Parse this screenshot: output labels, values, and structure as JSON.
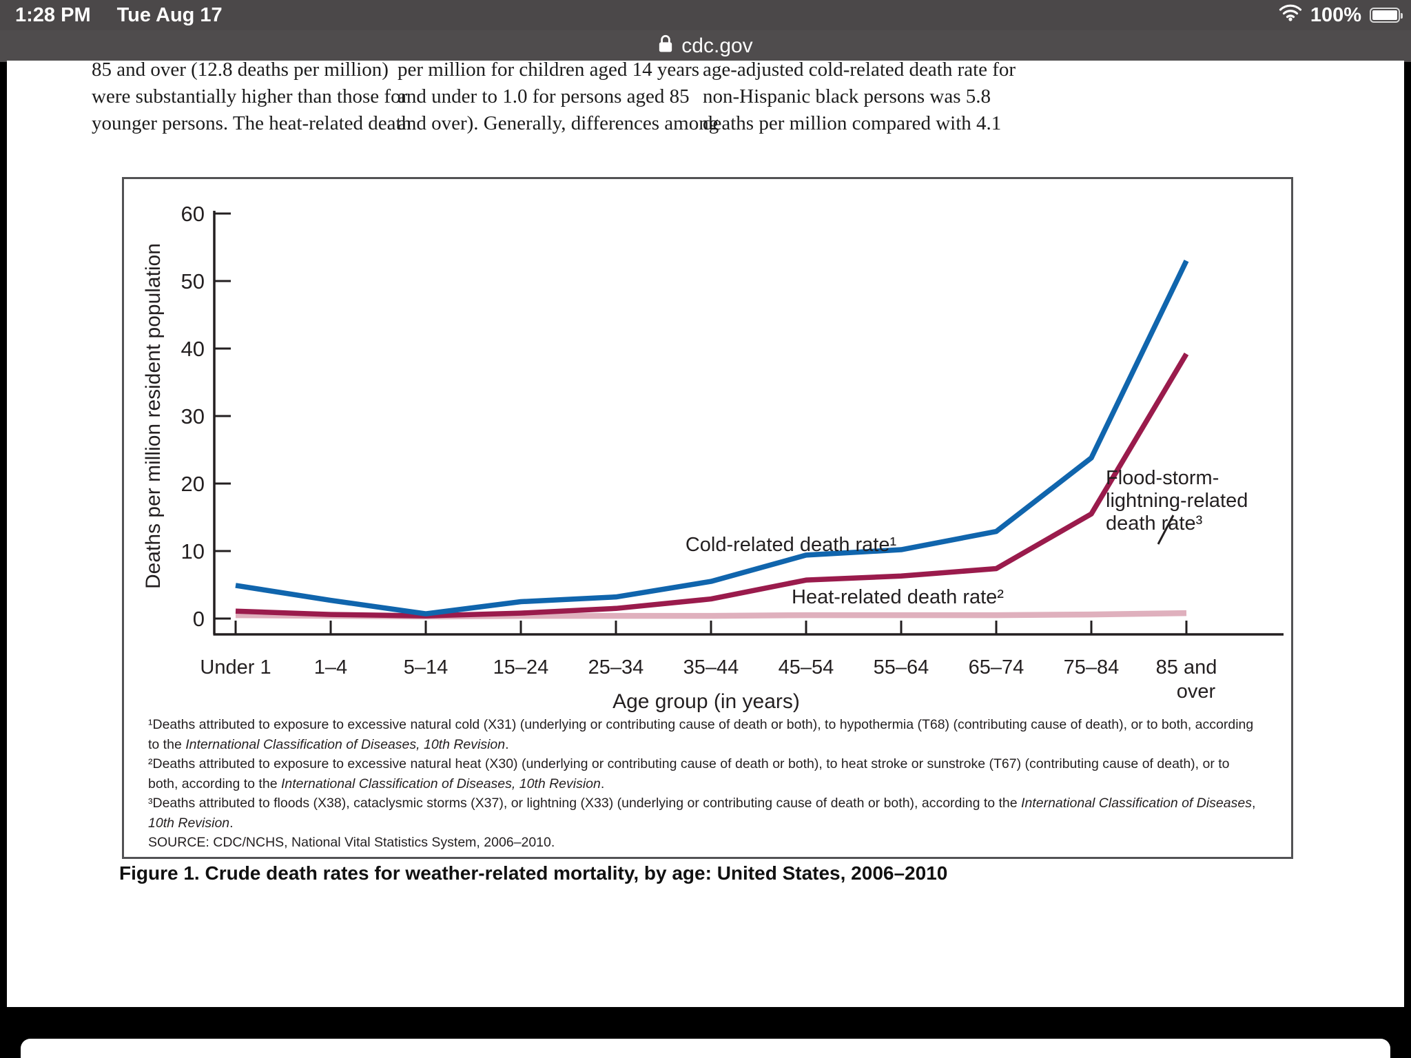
{
  "status_bar": {
    "time": "1:28 PM",
    "date": "Tue Aug 17",
    "battery_percent": "100%"
  },
  "browser": {
    "address": "cdc.gov"
  },
  "article": {
    "columns": [
      {
        "lines": [
          "85 and over (12.8 deaths per million)",
          "were substantially higher than those for",
          "younger persons. The heat-related death"
        ]
      },
      {
        "lines": [
          "per million for children aged 14 years",
          "and under to 1.0 for persons aged 85",
          "and over). Generally, differences among"
        ]
      },
      {
        "lines": [
          "age-adjusted cold-related death rate for",
          "non-Hispanic black persons was 5.8",
          "deaths per million compared with 4.1"
        ]
      }
    ]
  },
  "chart_data": {
    "type": "line",
    "title": "Figure 1. Crude death rates for weather-related mortality, by age: United States, 2006–2010",
    "xlabel": "Age group (in years)",
    "ylabel": "Deaths per million resident population",
    "ylim": [
      0,
      60
    ],
    "yticks": [
      0,
      10,
      20,
      30,
      40,
      50,
      60
    ],
    "grid": false,
    "categories": [
      "Under 1",
      "1–4",
      "5–14",
      "15–24",
      "25–34",
      "35–44",
      "45–54",
      "55–64",
      "65–74",
      "75–84",
      "85 and over"
    ],
    "series": [
      {
        "name": "Cold-related death rate¹",
        "color": "#1065ad",
        "values": [
          4.9,
          2.7,
          0.7,
          2.5,
          3.2,
          5.5,
          9.4,
          10.2,
          12.9,
          23.8,
          53.0
        ]
      },
      {
        "name": "Heat-related death rate²",
        "color": "#9a1b4c",
        "values": [
          1.1,
          0.6,
          0.4,
          0.8,
          1.5,
          2.9,
          5.7,
          6.3,
          7.4,
          15.5,
          39.2
        ]
      },
      {
        "name": "Flood-storm-lightning-related death rate³",
        "color": "#dfb0bd",
        "values": [
          0.5,
          0.4,
          0.3,
          0.4,
          0.4,
          0.4,
          0.5,
          0.5,
          0.5,
          0.6,
          0.8
        ]
      }
    ],
    "labels": {
      "cold": "Cold-related death rate¹",
      "heat": "Heat-related death rate²",
      "flood_lines": [
        "Flood-storm-",
        "lightning-related",
        "death rate³"
      ]
    },
    "footnotes": [
      [
        {
          "t": "¹Deaths attributed to exposure to excessive natural cold (X31) (underlying or contributing cause of death or both), to hypothermia (T68) (contributing cause of death), or to both, according"
        }
      ],
      [
        {
          "t": " to the "
        },
        {
          "t": "International Classification of Diseases, 10th Revision",
          "i": true
        },
        {
          "t": "."
        }
      ],
      [
        {
          "t": "²Deaths attributed to exposure to excessive natural heat (X30) (underlying or contributing cause of death or both), to heat stroke or sunstroke (T67) (contributing cause of death), or to"
        }
      ],
      [
        {
          "t": " both, according to the "
        },
        {
          "t": "International Classification of Diseases, 10th Revision",
          "i": true
        },
        {
          "t": "."
        }
      ],
      [
        {
          "t": "³Deaths attributed to floods (X38), cataclysmic storms (X37), or lightning (X33) (underlying or contributing cause of death or both), according to the "
        },
        {
          "t": "International Classification of Diseases",
          "i": true
        },
        {
          "t": ","
        }
      ],
      [
        {
          "t": " 10th Revision",
          "i": true
        },
        {
          "t": "."
        }
      ],
      [
        {
          "t": "SOURCE: CDC/NCHS, National Vital Statistics System, 2006–2010."
        }
      ]
    ]
  },
  "colors": {
    "chrome_bar": "#4b4849",
    "page": "#ffffff",
    "background": "#000000",
    "axis_text": "#231f20",
    "cold_line": "#1065ad",
    "heat_line": "#9a1b4c",
    "flood_line": "#dfb0bd"
  }
}
